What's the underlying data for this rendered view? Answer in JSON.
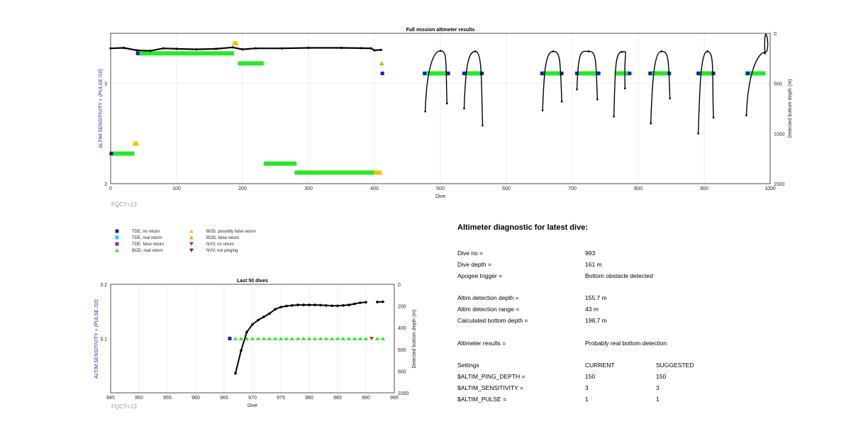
{
  "chart_data": [
    {
      "type": "scatter",
      "title": "Full mission altimeter results",
      "xlabel": "Dive",
      "ylabel_left": "ALTIM SENSITIVITY + (PULSE /10)",
      "ylabel_right": "Detected bottom depth (m)",
      "xlim": [
        0,
        1000
      ],
      "ylim_left": [
        2,
        3.5
      ],
      "ylim_right_reversed": [
        0,
        1500
      ],
      "xticks": [
        "0",
        "100",
        "200",
        "300",
        "400",
        "500",
        "600",
        "700",
        "800",
        "900",
        "1000"
      ],
      "yticks_left": [
        "2",
        "3"
      ],
      "yticks_right": [
        "0",
        "500",
        "1000",
        "1500"
      ],
      "annotation": "FQCY=13",
      "series": [
        {
          "name": "BOD, real return",
          "values": [
            {
              "x0": 42,
              "x1": 187,
              "y": 3.3
            },
            {
              "x0": 193,
              "x1": 232,
              "y": 3.2
            },
            {
              "x0": 1,
              "x1": 36,
              "y": 2.3
            },
            {
              "x0": 232,
              "x1": 282,
              "y": 2.2
            },
            {
              "x0": 279,
              "x1": 410,
              "y": 2.11
            },
            {
              "x0": 477,
              "x1": 513,
              "y": 3.1
            },
            {
              "x0": 537,
              "x1": 563,
              "y": 3.1
            },
            {
              "x0": 653,
              "x1": 684,
              "y": 3.1
            },
            {
              "x0": 707,
              "x1": 741,
              "y": 3.1
            },
            {
              "x0": 764,
              "x1": 786,
              "y": 3.1
            },
            {
              "x0": 817,
              "x1": 848,
              "y": 3.1
            },
            {
              "x0": 890,
              "x1": 915,
              "y": 3.1
            },
            {
              "x0": 962,
              "x1": 993,
              "y": 3.1
            }
          ]
        },
        {
          "name": "TDE, no return",
          "values": [
            {
              "x": 41,
              "y": 3.3
            },
            {
              "x": 1,
              "y": 2.3
            },
            {
              "x": 412,
              "y": 3.1
            },
            {
              "x": 476,
              "y": 3.1
            },
            {
              "x": 512,
              "y": 3.1
            },
            {
              "x": 536,
              "y": 3.1
            },
            {
              "x": 563,
              "y": 3.1
            },
            {
              "x": 654,
              "y": 3.1
            },
            {
              "x": 684,
              "y": 3.1
            },
            {
              "x": 707,
              "y": 3.1
            },
            {
              "x": 740,
              "y": 3.1
            },
            {
              "x": 787,
              "y": 3.1
            },
            {
              "x": 818,
              "y": 3.1
            },
            {
              "x": 847,
              "y": 3.1
            },
            {
              "x": 891,
              "y": 3.1
            },
            {
              "x": 914,
              "y": 3.1
            },
            {
              "x": 966,
              "y": 3.1
            }
          ]
        },
        {
          "name": "BOD, false return",
          "values": [
            {
              "x": 411,
              "y": 3.2
            }
          ]
        },
        {
          "name": "BOD, possibly false return",
          "values": [
            {
              "x0": 184,
              "x1": 194,
              "y": 3.4
            },
            {
              "x0": 33,
              "x1": 43,
              "y": 2.4
            },
            {
              "x0": 398,
              "x1": 412,
              "y": 2.11
            }
          ]
        },
        {
          "name": "Detected bottom depth",
          "values": [
            {
              "x": 0,
              "y": 150
            },
            {
              "x": 20,
              "y": 145
            },
            {
              "x": 40,
              "y": 170
            },
            {
              "x": 60,
              "y": 175
            },
            {
              "x": 80,
              "y": 150
            },
            {
              "x": 100,
              "y": 155
            },
            {
              "x": 130,
              "y": 160
            },
            {
              "x": 160,
              "y": 155
            },
            {
              "x": 185,
              "y": 140
            },
            {
              "x": 200,
              "y": 160
            },
            {
              "x": 220,
              "y": 150
            },
            {
              "x": 260,
              "y": 150
            },
            {
              "x": 300,
              "y": 145
            },
            {
              "x": 350,
              "y": 145
            },
            {
              "x": 380,
              "y": 148
            },
            {
              "x": 395,
              "y": 150
            },
            {
              "x": 400,
              "y": 170
            },
            {
              "x": 410,
              "y": 165
            }
          ]
        }
      ],
      "arches": [
        {
          "left": [
            477,
            780
          ],
          "apex": [
            500,
            175
          ],
          "right": [
            510,
            700
          ]
        },
        {
          "left": [
            536,
            750
          ],
          "apex": [
            553,
            180
          ],
          "right": [
            564,
            920
          ]
        },
        {
          "left": [
            655,
            770
          ],
          "apex": [
            671,
            180
          ],
          "right": [
            684,
            680
          ]
        },
        {
          "left": [
            707,
            560
          ],
          "apex": [
            725,
            180
          ],
          "right": [
            738,
            660
          ]
        },
        {
          "left": [
            763,
            830
          ],
          "apex": [
            775,
            185
          ],
          "right": [
            780,
            550
          ]
        },
        {
          "left": [
            819,
            900
          ],
          "apex": [
            835,
            180
          ],
          "right": [
            848,
            650
          ]
        },
        {
          "left": [
            891,
            1000
          ],
          "apex": [
            905,
            180
          ],
          "right": [
            914,
            840
          ]
        },
        {
          "left": [
            964,
            820
          ],
          "apex": [
            992,
            190
          ],
          "right": [
            992,
            200
          ]
        }
      ]
    },
    {
      "type": "scatter",
      "title": "Last 50 dives",
      "xlabel": "Dive",
      "ylabel_left": "ALTIM SENSITIVITY + (PULSE /10)",
      "ylabel_right": "Detected bottom depth (m)",
      "xlim": [
        945,
        995
      ],
      "ylim_left": [
        3.0,
        3.2
      ],
      "ylim_right_reversed": [
        0,
        1000
      ],
      "xticks": [
        "945",
        "950",
        "955",
        "960",
        "965",
        "970",
        "975",
        "980",
        "985",
        "990",
        "995"
      ],
      "yticks_left": [
        "3.1",
        "3.2"
      ],
      "yticks_right": [
        "0",
        "200",
        "400",
        "600",
        "800",
        "1000"
      ],
      "annotation": "FQCY=13",
      "series": [
        {
          "name": "TDE, no return",
          "values": [
            {
              "x": 966,
              "y": 3.1
            }
          ]
        },
        {
          "name": "BOD, real return",
          "values": [
            967,
            968,
            969,
            970,
            971,
            972,
            973,
            974,
            975,
            976,
            977,
            978,
            979,
            980,
            981,
            982,
            983,
            984,
            985,
            986,
            987,
            988,
            989,
            990,
            992,
            993
          ]
        },
        {
          "name": "NVV, no return",
          "values": [
            {
              "x": 991,
              "y": 3.1
            }
          ]
        },
        {
          "name": "Detected bottom depth",
          "values": [
            {
              "x": 967,
              "y": 820
            },
            {
              "x": 968,
              "y": 610
            },
            {
              "x": 969,
              "y": 440
            },
            {
              "x": 970,
              "y": 370
            },
            {
              "x": 971,
              "y": 330
            },
            {
              "x": 972,
              "y": 300
            },
            {
              "x": 973,
              "y": 270
            },
            {
              "x": 974,
              "y": 230
            },
            {
              "x": 975,
              "y": 210
            },
            {
              "x": 976,
              "y": 200
            },
            {
              "x": 977,
              "y": 195
            },
            {
              "x": 978,
              "y": 190
            },
            {
              "x": 979,
              "y": 190
            },
            {
              "x": 980,
              "y": 190
            },
            {
              "x": 981,
              "y": 190
            },
            {
              "x": 982,
              "y": 192
            },
            {
              "x": 983,
              "y": 195
            },
            {
              "x": 984,
              "y": 198
            },
            {
              "x": 985,
              "y": 198
            },
            {
              "x": 986,
              "y": 195
            },
            {
              "x": 987,
              "y": 190
            },
            {
              "x": 988,
              "y": 180
            },
            {
              "x": 989,
              "y": 170
            },
            {
              "x": 990,
              "y": 165
            },
            {
              "x": 992,
              "y": 163
            },
            {
              "x": 993,
              "y": 161
            }
          ]
        }
      ]
    }
  ],
  "legend": [
    {
      "label": "TDE, no return",
      "color": "#1a1acc",
      "shape": "square"
    },
    {
      "label": "TDE, real return",
      "color": "#22cccc",
      "shape": "square"
    },
    {
      "label": "TDE, false return",
      "color": "#7b28d4",
      "shape": "square"
    },
    {
      "label": "BOD, real return",
      "color": "#27e827",
      "shape": "triangle-up"
    },
    {
      "label": "BOD, possibly false return",
      "color": "#f2c400",
      "shape": "triangle-up"
    },
    {
      "label": "BOD, false return",
      "color": "#ee9f00",
      "shape": "triangle-up"
    },
    {
      "label": "NVV, no return",
      "color": "#d42a1a",
      "shape": "triangle-down"
    },
    {
      "label": "NVV, not pinging",
      "color": "#7a1a10",
      "shape": "triangle-down"
    }
  ],
  "diagnostic": {
    "title": "Altimeter diagnostic for latest dive:",
    "rows": [
      {
        "label": "Dive no =",
        "value": "993"
      },
      {
        "label": "Dive depth =",
        "value": "161 m"
      },
      {
        "label": "Apogee trigger =",
        "value": "Bottom obstacle detected"
      },
      {
        "label": "Altim detection depth =",
        "value": "155.7 m"
      },
      {
        "label": "Altim detection range =",
        "value": "43 m"
      },
      {
        "label": "Calculated bottom depth =",
        "value": "198.7 m"
      },
      {
        "label": "Altimeter results =",
        "value": "Probably real bottom detection"
      }
    ],
    "settings": {
      "header": [
        "Settings",
        "CURRENT",
        "SUGGESTED"
      ],
      "rows": [
        [
          "$ALTIM_PING_DEPTH =",
          "150",
          "150"
        ],
        [
          "$ALTIM_SENSITIVITY =",
          "3",
          "3"
        ],
        [
          "$ALTIM_PULSE =",
          "1",
          "1"
        ]
      ]
    }
  }
}
